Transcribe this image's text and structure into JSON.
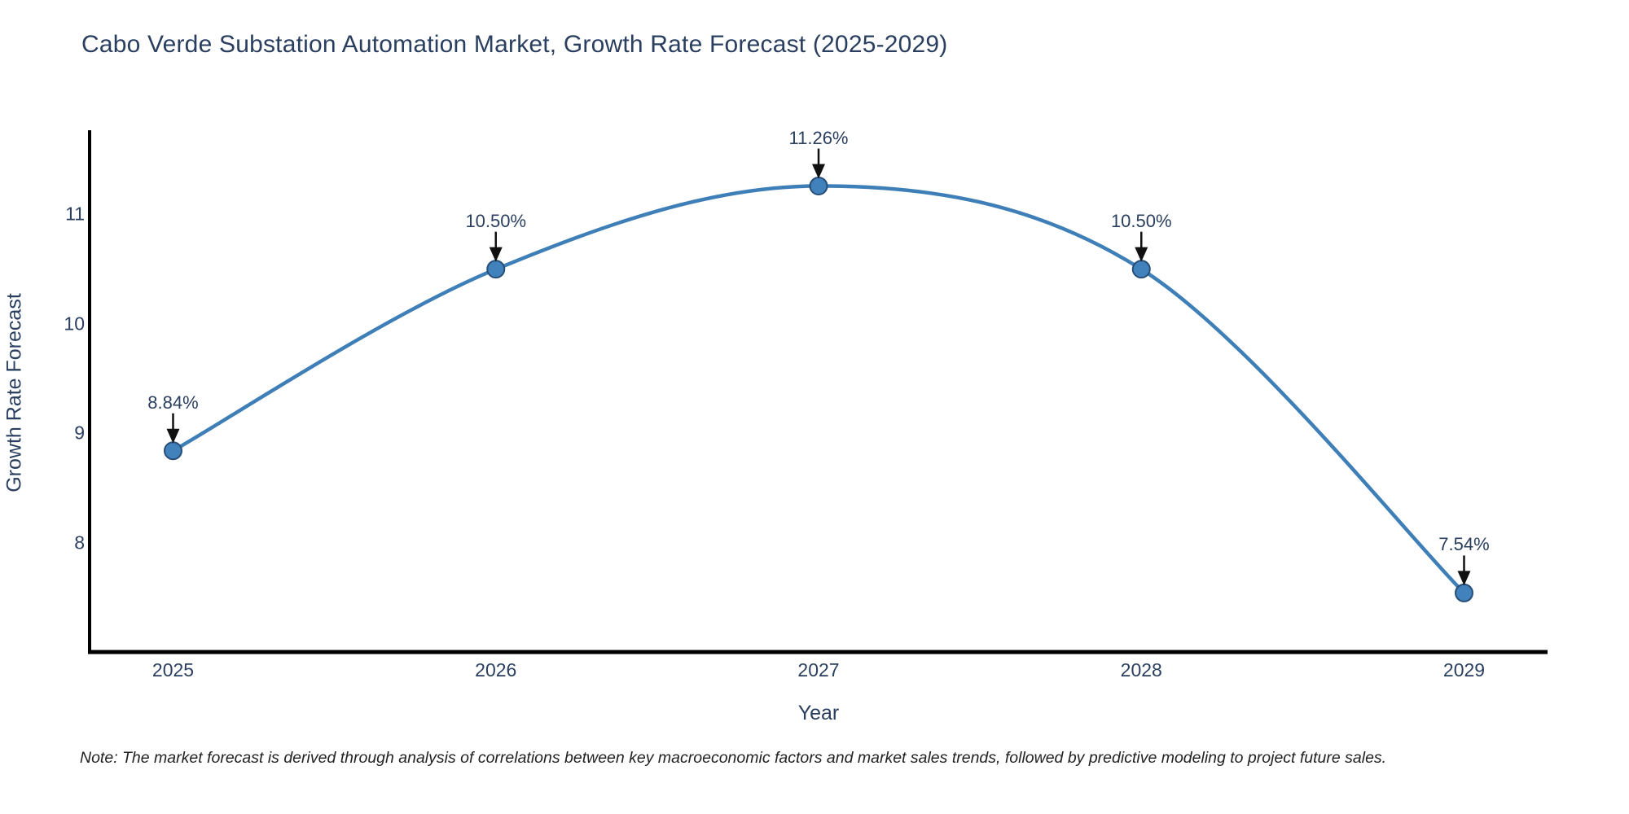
{
  "title": "Cabo Verde Substation Automation Market, Growth Rate Forecast (2025-2029)",
  "note": "Note: The market forecast is derived through analysis of correlations between key macroeconomic factors and market sales trends, followed by predictive modeling to project future sales.",
  "chart_data": {
    "type": "line",
    "categories": [
      "2025",
      "2026",
      "2027",
      "2028",
      "2029"
    ],
    "series": [
      {
        "name": "Growth Rate Forecast",
        "values": [
          8.84,
          10.5,
          11.26,
          10.5,
          7.54
        ]
      }
    ],
    "point_labels": [
      "8.84%",
      "10.50%",
      "11.26%",
      "10.50%",
      "7.54%"
    ],
    "title": "Cabo Verde Substation Automation Market, Growth Rate Forecast (2025-2029)",
    "xlabel": "Year",
    "ylabel": "Growth Rate Forecast",
    "yticks": [
      8,
      9,
      10,
      11
    ],
    "ylim": [
      7.0,
      11.77
    ],
    "grid": false,
    "legend": "none",
    "line_shape": "spline",
    "colors": {
      "line": "#3f7fb8",
      "marker_fill": "#4181bc",
      "marker_stroke": "#274e77",
      "axis_line": "#000000",
      "annotation_arrow": "#111111",
      "text": "#2a3f5f"
    }
  }
}
